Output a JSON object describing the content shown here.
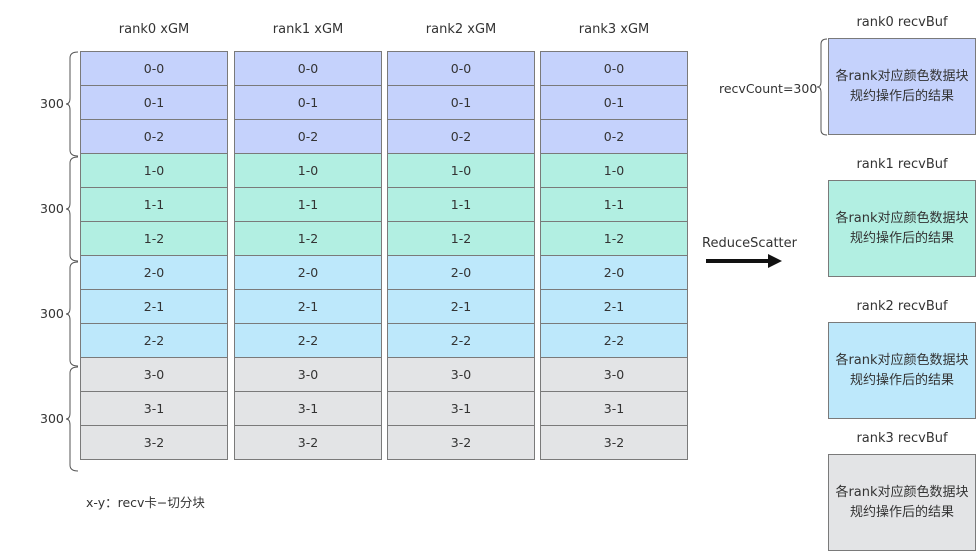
{
  "columns": [
    {
      "title": "rank0 xGM"
    },
    {
      "title": "rank1 xGM"
    },
    {
      "title": "rank2 xGM"
    },
    {
      "title": "rank3 xGM"
    }
  ],
  "blocks": [
    "0-0",
    "0-1",
    "0-2",
    "1-0",
    "1-1",
    "1-2",
    "2-0",
    "2-1",
    "2-2",
    "3-0",
    "3-1",
    "3-2"
  ],
  "group_colors": [
    "#c5d2fc",
    "#b2efe2",
    "#bde8fb",
    "#e3e4e6"
  ],
  "group_sizes": [
    "300",
    "300",
    "300",
    "300"
  ],
  "legend": "x-y：recv卡−切分块",
  "operation": "ReduceScatter",
  "recv_count_label": "recvCount=300",
  "recv_buffers": [
    {
      "title": "rank0 recvBuf",
      "text": "各rank对应颜色数据块规约操作后的结果",
      "color": "#c5d2fc"
    },
    {
      "title": "rank1 recvBuf",
      "text": "各rank对应颜色数据块规约操作后的结果",
      "color": "#b2efe2"
    },
    {
      "title": "rank2 recvBuf",
      "text": "各rank对应颜色数据块规约操作后的结果",
      "color": "#bde8fb"
    },
    {
      "title": "rank3 recvBuf",
      "text": "各rank对应颜色数据块规约操作后的结果",
      "color": "#e3e4e6"
    }
  ]
}
